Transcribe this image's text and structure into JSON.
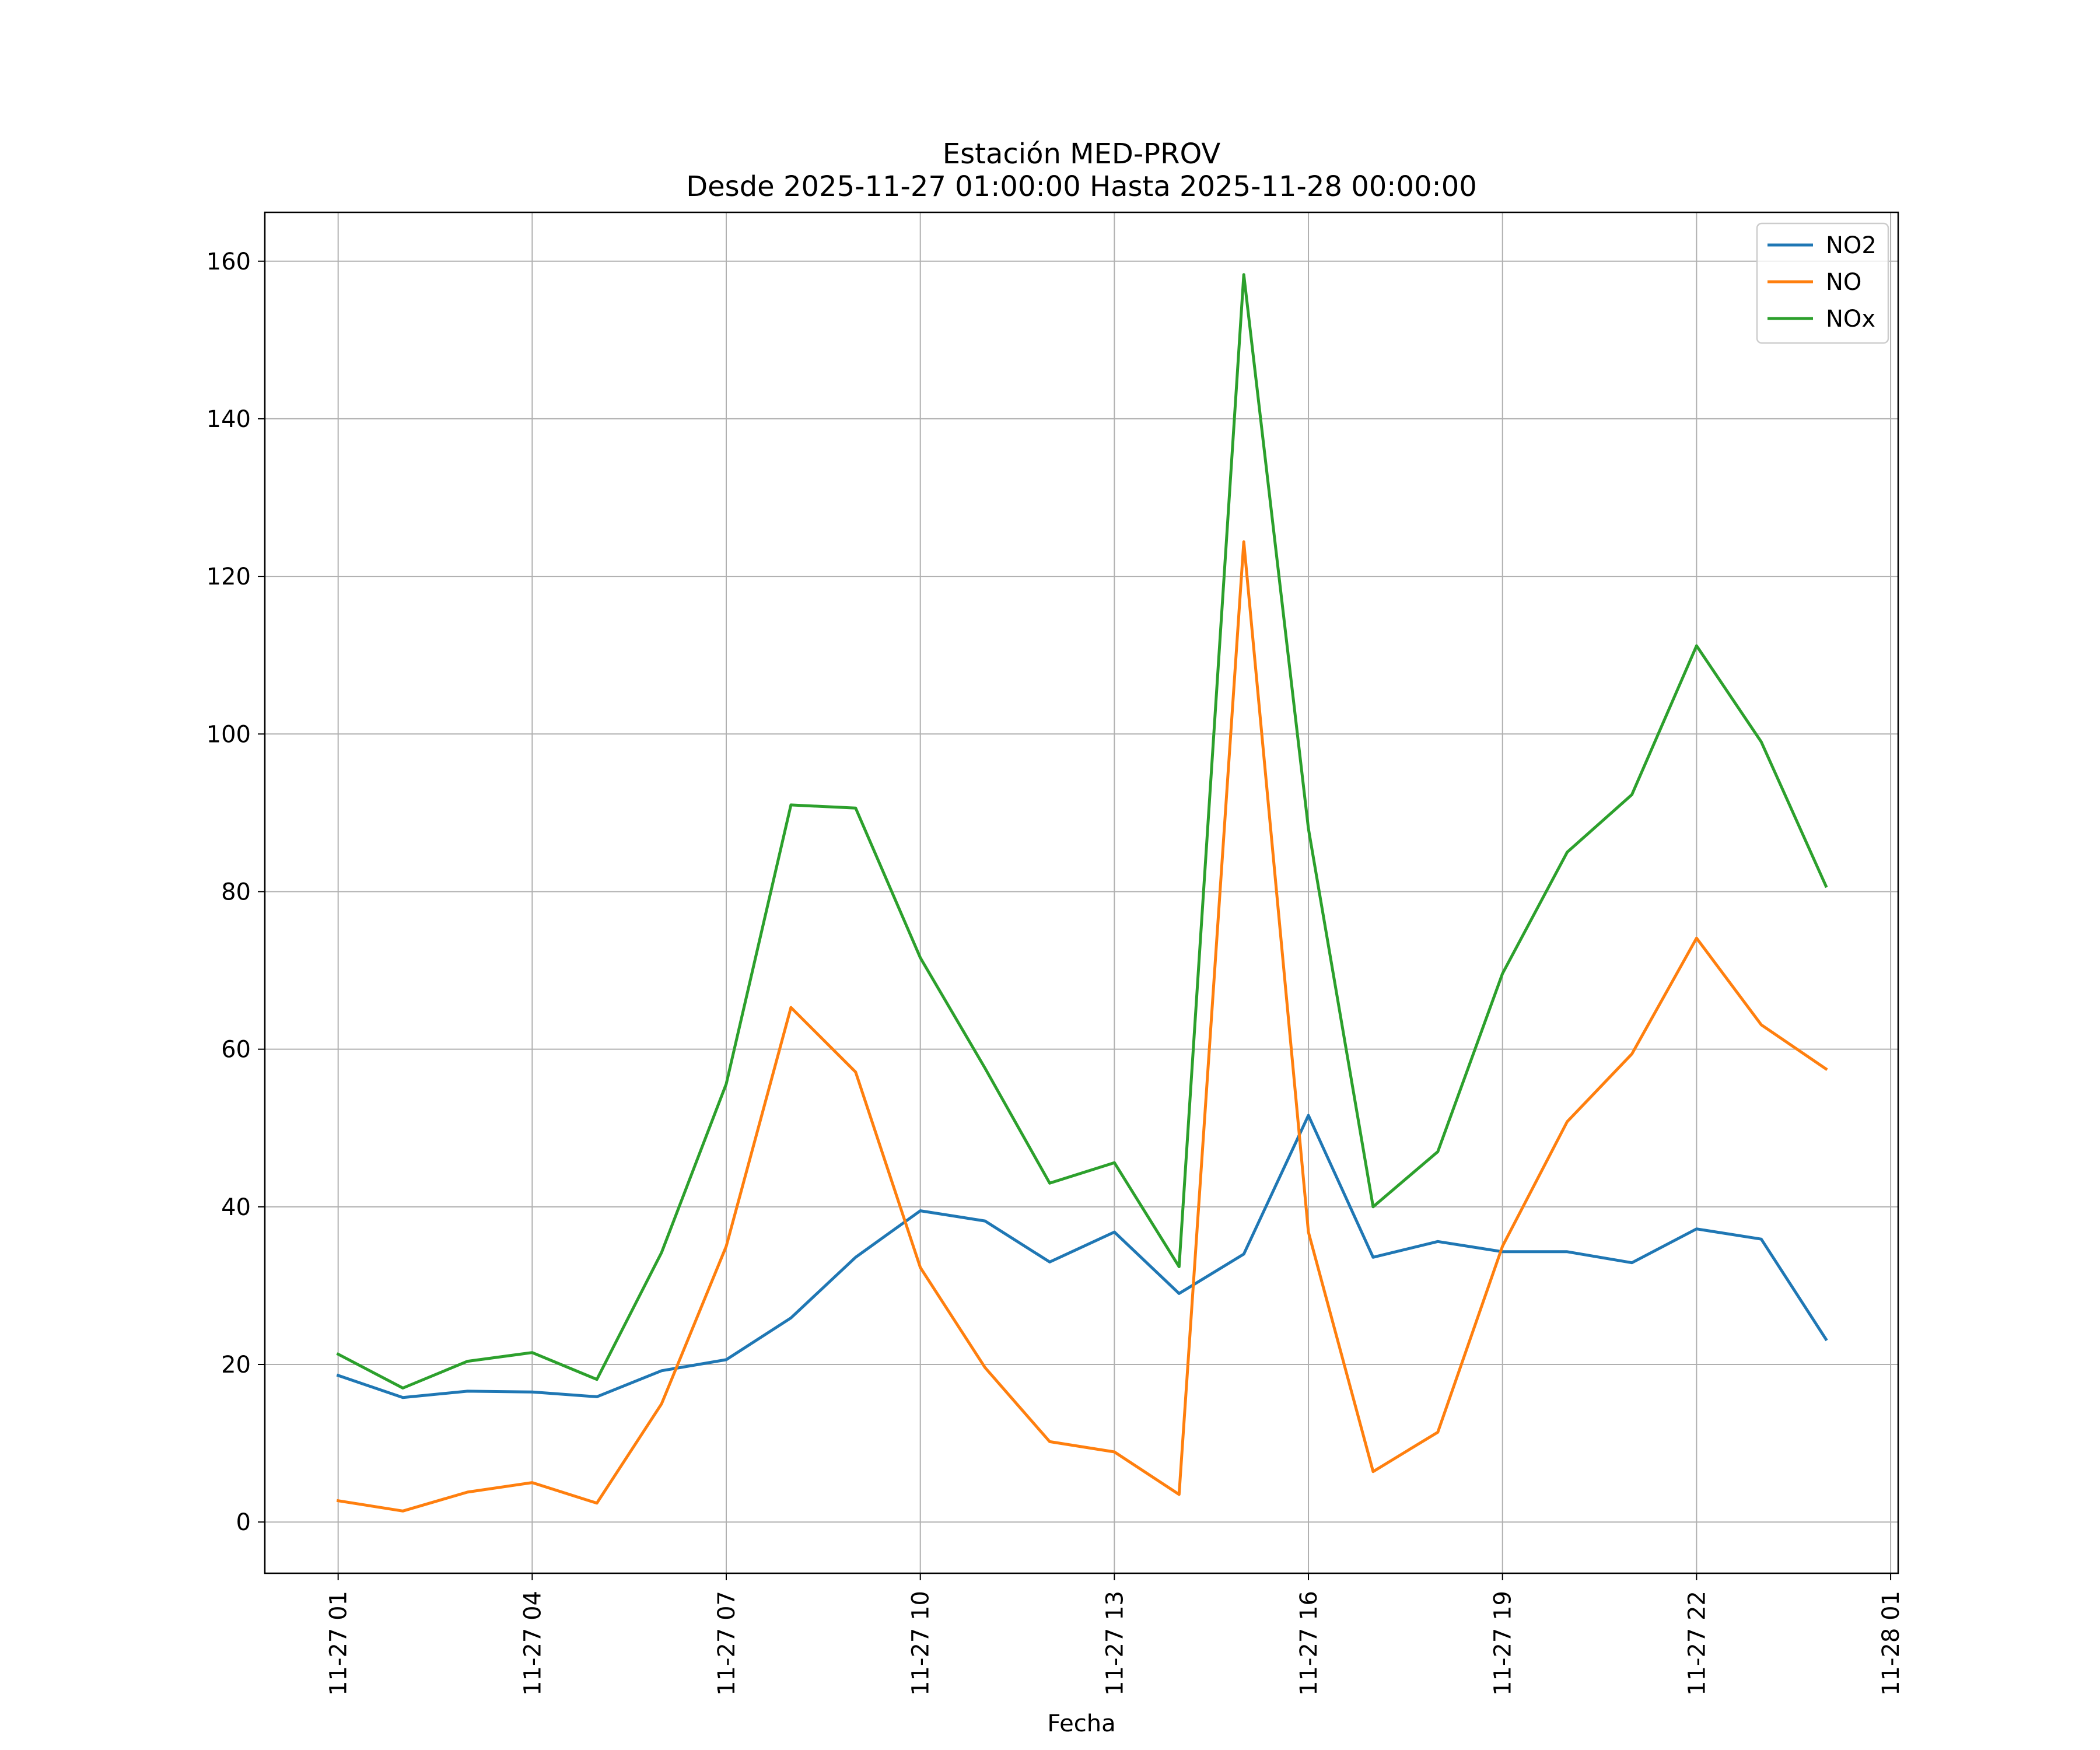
{
  "chart_data": {
    "type": "line",
    "title": "Estación MED-PROV",
    "subtitle": "Desde 2025-11-27 01:00:00 Hasta 2025-11-28 00:00:00",
    "xlabel": "Fecha",
    "ylabel": "",
    "x_unit": "hour",
    "x": [
      "2025-11-27 01:00",
      "2025-11-27 02:00",
      "2025-11-27 03:00",
      "2025-11-27 04:00",
      "2025-11-27 05:00",
      "2025-11-27 06:00",
      "2025-11-27 07:00",
      "2025-11-27 08:00",
      "2025-11-27 09:00",
      "2025-11-27 10:00",
      "2025-11-27 11:00",
      "2025-11-27 12:00",
      "2025-11-27 13:00",
      "2025-11-27 14:00",
      "2025-11-27 15:00",
      "2025-11-27 16:00",
      "2025-11-27 17:00",
      "2025-11-27 18:00",
      "2025-11-27 19:00",
      "2025-11-27 20:00",
      "2025-11-27 21:00",
      "2025-11-27 22:00",
      "2025-11-27 23:00",
      "2025-11-28 00:00"
    ],
    "xlim": [
      "2025-11-26 23:52",
      "2025-11-28 01:07"
    ],
    "xticks": [
      "2025-11-27 01:00",
      "2025-11-27 04:00",
      "2025-11-27 07:00",
      "2025-11-27 10:00",
      "2025-11-27 13:00",
      "2025-11-27 16:00",
      "2025-11-27 19:00",
      "2025-11-27 22:00",
      "2025-11-28 01:00"
    ],
    "xtick_labels": [
      "11-27 01",
      "11-27 04",
      "11-27 07",
      "11-27 10",
      "11-27 13",
      "11-27 16",
      "11-27 19",
      "11-27 22",
      "11-28 01"
    ],
    "ylim": [
      -6.5,
      166.2
    ],
    "yticks": [
      0,
      20,
      40,
      60,
      80,
      100,
      120,
      140,
      160
    ],
    "grid": true,
    "legend_position": "top-right",
    "series": [
      {
        "name": "NO2",
        "color": "#1f77b4",
        "values": [
          18.6,
          15.8,
          16.6,
          16.5,
          15.9,
          19.2,
          20.6,
          25.9,
          33.6,
          39.5,
          38.2,
          33.0,
          36.8,
          29.0,
          34.0,
          51.6,
          33.6,
          35.6,
          34.3,
          34.3,
          32.9,
          37.2,
          35.9,
          23.2
        ]
      },
      {
        "name": "NO",
        "color": "#ff7f0e",
        "values": [
          2.7,
          1.4,
          3.8,
          5.0,
          2.4,
          15.0,
          35.0,
          65.3,
          57.1,
          32.3,
          19.6,
          10.2,
          8.9,
          3.5,
          124.4,
          36.8,
          6.4,
          11.4,
          35.0,
          50.8,
          59.4,
          74.1,
          63.1,
          57.5
        ]
      },
      {
        "name": "NOx",
        "color": "#2ca02c",
        "values": [
          21.3,
          17.0,
          20.4,
          21.5,
          18.1,
          34.2,
          55.6,
          91.0,
          90.6,
          71.6,
          57.6,
          43.0,
          45.6,
          32.4,
          158.3,
          88.0,
          40.0,
          47.0,
          69.6,
          85.0,
          92.3,
          111.2,
          99.0,
          80.7
        ]
      }
    ]
  }
}
